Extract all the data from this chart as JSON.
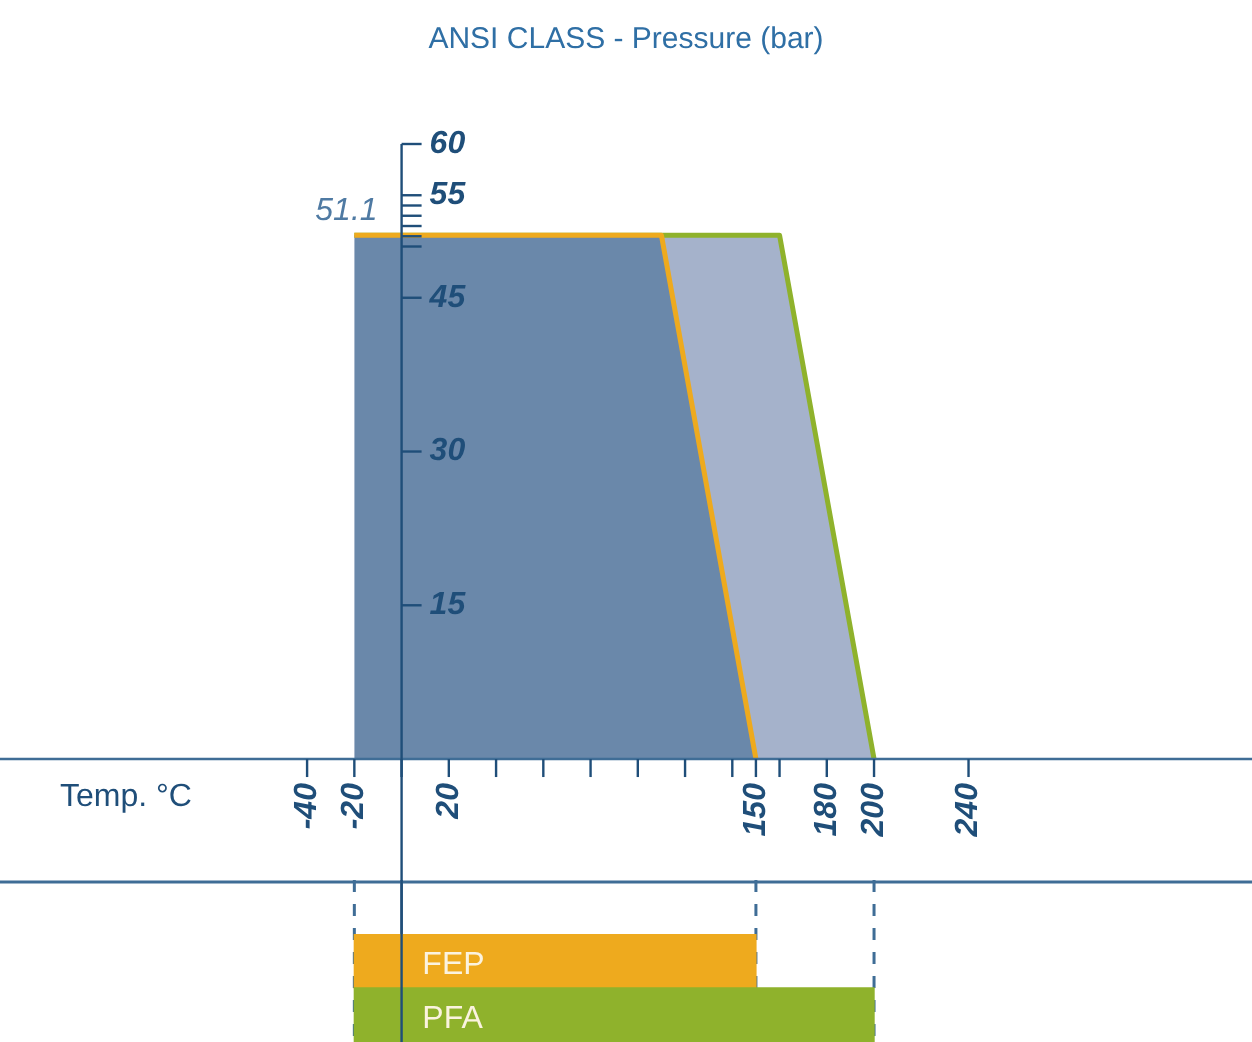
{
  "chart_data": [
    {
      "type": "area",
      "title": "ANSI CLASS - Pressure (bar)",
      "xlabel": "Temp. °C",
      "xlim": [
        -170,
        360
      ],
      "ylim": [
        -11.8,
        60
      ],
      "xticks": [
        -40,
        -20,
        {
          "value": 0,
          "label": null
        },
        20,
        {
          "value": 40,
          "label": null
        },
        {
          "value": 60,
          "label": null
        },
        {
          "value": 80,
          "label": null
        },
        {
          "value": 100,
          "label": null
        },
        {
          "value": 120,
          "label": null
        },
        {
          "value": 140,
          "label": null
        },
        150,
        {
          "value": 160,
          "label": null
        },
        180,
        200,
        240
      ],
      "yticks": [
        15,
        30,
        45,
        {
          "value": 50,
          "label": null
        },
        {
          "value": 51,
          "label": null
        },
        {
          "value": 52,
          "label": null
        },
        {
          "value": 53,
          "label": null
        },
        {
          "value": 54,
          "label": null
        },
        55,
        60
      ],
      "annotations": [
        {
          "text": "51.1",
          "x": -20,
          "y": 51.1
        }
      ],
      "series": [
        {
          "color": "#6a88aa",
          "x": [
            -20,
            110,
            150
          ],
          "values": [
            51.1,
            51.1,
            0
          ]
        },
        {
          "color": "#a5b2cb",
          "x": [
            -20,
            160,
            200
          ],
          "values": [
            51.1,
            51.1,
            0
          ]
        }
      ]
    },
    {
      "type": "bar",
      "orientation": "horizontal",
      "categories": [
        "FEP",
        "PFA"
      ],
      "base": [
        -20,
        -20
      ],
      "values": [
        170,
        220
      ],
      "colors": [
        "#eeaa1e",
        "#8fb22c"
      ],
      "xlim": [
        -170,
        360
      ],
      "xticks": [
        -20,
        150,
        200
      ],
      "grid": "x",
      "tick_labels": false
    }
  ]
}
